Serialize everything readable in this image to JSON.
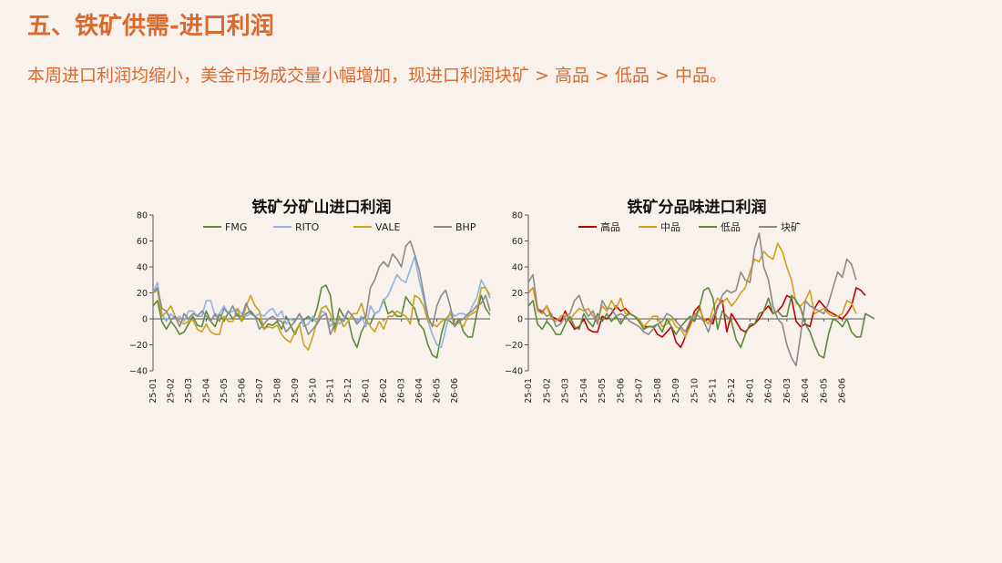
{
  "slide": {
    "title": "五、铁矿供需-进口利润",
    "subtitle": "本周进口利润均缩小，美金市场成交量小幅增加，现进口利润块矿 > 高品 > 低品 > 中品。"
  },
  "chart_data": [
    {
      "type": "line",
      "title": "铁矿分矿山进口利润",
      "ylim": [
        -40,
        80
      ],
      "yticks": [
        -40,
        -20,
        0,
        20,
        40,
        60,
        80
      ],
      "xtick_labels": [
        "25-01",
        "25-02",
        "25-03",
        "25-04",
        "25-05",
        "25-06",
        "25-07",
        "25-08",
        "25-09",
        "25-10",
        "25-11",
        "25-12",
        "26-01",
        "26-02",
        "26-03",
        "26-04",
        "26-05",
        "26-06"
      ],
      "x_per_tick": 4,
      "legend_position": "top",
      "series": [
        {
          "name": "FMG",
          "color": "#5b8a3a",
          "values": [
            10,
            14,
            -2,
            -8,
            -2,
            -6,
            -12,
            -10,
            -4,
            2,
            -5,
            -6,
            6,
            -2,
            -6,
            4,
            -2,
            5,
            0,
            4,
            -2,
            4,
            6,
            2,
            -1,
            -8,
            -4,
            -5,
            -2,
            -8,
            2,
            -5,
            -12,
            -4,
            -1,
            2,
            -2,
            8,
            24,
            26,
            18,
            -8,
            8,
            2,
            0,
            -15,
            -22,
            -10,
            -3,
            -4,
            4,
            6,
            15,
            4,
            6,
            2,
            2,
            17,
            12,
            8,
            -4,
            -8,
            -20,
            -28,
            -30,
            -12,
            0,
            -2,
            -5,
            0,
            -10,
            -14,
            -14,
            4,
            18,
            8,
            3
          ]
        },
        {
          "name": "RITO",
          "color": "#8fb4e3",
          "values": [
            20,
            28,
            4,
            -2,
            4,
            0,
            2,
            -2,
            6,
            6,
            2,
            2,
            14,
            14,
            2,
            4,
            10,
            4,
            6,
            8,
            4,
            2,
            4,
            2,
            4,
            2,
            6,
            8,
            2,
            6,
            -4,
            0,
            -2,
            4,
            -6,
            -4,
            2,
            -4,
            6,
            4,
            -6,
            0,
            -4,
            0,
            6,
            2,
            -2,
            2,
            -6,
            10,
            4,
            6,
            14,
            18,
            26,
            34,
            30,
            28,
            38,
            48,
            30,
            16,
            -2,
            -12,
            -20,
            -22,
            -8,
            6,
            2,
            4,
            4,
            2,
            10,
            16,
            30,
            24,
            16
          ]
        },
        {
          "name": "VALE",
          "color": "#c9a21d",
          "values": [
            20,
            22,
            2,
            5,
            10,
            2,
            -2,
            -4,
            -2,
            -1,
            -8,
            -10,
            -4,
            -10,
            -12,
            -12,
            2,
            -2,
            -2,
            8,
            -2,
            10,
            18,
            10,
            6,
            -8,
            -6,
            -7,
            -5,
            -12,
            -16,
            -18,
            -10,
            -4,
            -20,
            -24,
            -14,
            -2,
            8,
            10,
            4,
            -10,
            2,
            -6,
            -2,
            4,
            4,
            12,
            0,
            -6,
            -10,
            -2,
            -8,
            2,
            2,
            6,
            4,
            2,
            -4,
            18,
            16,
            10,
            -2,
            -4,
            -6,
            -2,
            0,
            4,
            -4,
            -3,
            -6,
            2,
            4,
            6,
            24,
            24,
            18
          ]
        },
        {
          "name": "BHP",
          "color": "#8a8a8a",
          "values": [
            20,
            24,
            8,
            6,
            -1,
            2,
            -6,
            4,
            0,
            4,
            2,
            6,
            2,
            -2,
            4,
            -2,
            8,
            4,
            10,
            2,
            2,
            12,
            4,
            2,
            -8,
            -4,
            0,
            2,
            -1,
            -2,
            -10,
            -6,
            -2,
            4,
            -2,
            -12,
            -8,
            -4,
            2,
            4,
            -12,
            -4,
            0,
            -2,
            6,
            2,
            -4,
            0,
            2,
            24,
            30,
            40,
            44,
            40,
            50,
            46,
            40,
            56,
            60,
            50,
            38,
            20,
            2,
            -6,
            10,
            18,
            22,
            10,
            -6,
            -2,
            0,
            4,
            6,
            10,
            12,
            18,
            6
          ]
        }
      ]
    },
    {
      "type": "line",
      "title": "铁矿分品味进口利润",
      "ylim": [
        -40,
        80
      ],
      "yticks": [
        -40,
        -20,
        0,
        20,
        40,
        60,
        80
      ],
      "xtick_labels": [
        "25-01",
        "25-02",
        "25-03",
        "25-04",
        "25-05",
        "25-06",
        "25-07",
        "25-08",
        "25-09",
        "25-10",
        "25-11",
        "25-12",
        "26-01",
        "26-02",
        "26-03",
        "26-04",
        "26-05",
        "26-06"
      ],
      "x_per_tick": 4,
      "legend_position": "top",
      "series": [
        {
          "name": "高品",
          "color": "#c00000",
          "values": [
            20,
            24,
            8,
            5,
            10,
            2,
            0,
            -2,
            6,
            -2,
            -8,
            -6,
            0,
            -8,
            -10,
            -10,
            2,
            0,
            4,
            10,
            6,
            8,
            4,
            2,
            -2,
            -6,
            -6,
            -6,
            -12,
            -14,
            -10,
            -6,
            -18,
            -22,
            -14,
            -4,
            6,
            10,
            -2,
            0,
            -4,
            10,
            14,
            -10,
            4,
            -2,
            -8,
            -10,
            -6,
            -4,
            0,
            6,
            10,
            4,
            6,
            10,
            18,
            16,
            -2,
            -6,
            -4,
            -6,
            8,
            14,
            10,
            6,
            4,
            2,
            0,
            4,
            10,
            24,
            22,
            18
          ]
        },
        {
          "name": "中品",
          "color": "#d4a017",
          "values": [
            20,
            24,
            6,
            4,
            10,
            0,
            -2,
            2,
            4,
            -1,
            4,
            8,
            6,
            8,
            2,
            -1,
            10,
            6,
            14,
            8,
            16,
            4,
            4,
            2,
            0,
            -6,
            -2,
            2,
            2,
            -6,
            -4,
            0,
            -6,
            -8,
            -14,
            -6,
            2,
            8,
            0,
            -4,
            8,
            16,
            12,
            16,
            10,
            14,
            20,
            24,
            36,
            46,
            44,
            52,
            48,
            46,
            58,
            52,
            40,
            30,
            12,
            10,
            14,
            22,
            4,
            6,
            8,
            4,
            2,
            2,
            4,
            14,
            12,
            4
          ]
        },
        {
          "name": "低品",
          "color": "#5b8a3a",
          "values": [
            10,
            14,
            -4,
            -8,
            -2,
            -6,
            -12,
            -12,
            -4,
            2,
            -6,
            -8,
            4,
            -2,
            -6,
            4,
            -2,
            4,
            -2,
            2,
            -4,
            2,
            4,
            2,
            -2,
            -8,
            -6,
            -6,
            -4,
            -10,
            0,
            -6,
            -12,
            -6,
            -2,
            2,
            -2,
            8,
            22,
            24,
            16,
            -8,
            6,
            2,
            -2,
            -16,
            -22,
            -12,
            -4,
            -4,
            4,
            6,
            16,
            4,
            6,
            2,
            2,
            18,
            14,
            8,
            -4,
            -10,
            -20,
            -28,
            -30,
            -12,
            0,
            -2,
            -6,
            0,
            -10,
            -14,
            -14,
            4,
            2,
            0
          ]
        },
        {
          "name": "块矿",
          "color": "#8a8a8a",
          "values": [
            28,
            34,
            8,
            6,
            2,
            4,
            -6,
            -4,
            2,
            4,
            14,
            18,
            8,
            2,
            6,
            -4,
            14,
            8,
            8,
            2,
            4,
            2,
            -2,
            -4,
            -6,
            -10,
            -12,
            -8,
            -4,
            -2,
            4,
            2,
            -2,
            -6,
            -10,
            -2,
            4,
            2,
            -2,
            -10,
            2,
            8,
            18,
            22,
            20,
            22,
            36,
            30,
            28,
            54,
            66,
            40,
            30,
            10,
            0,
            -4,
            -20,
            -30,
            -36,
            -12,
            14,
            10,
            8,
            6,
            4,
            12,
            24,
            36,
            32,
            46,
            42,
            30
          ]
        }
      ]
    }
  ]
}
